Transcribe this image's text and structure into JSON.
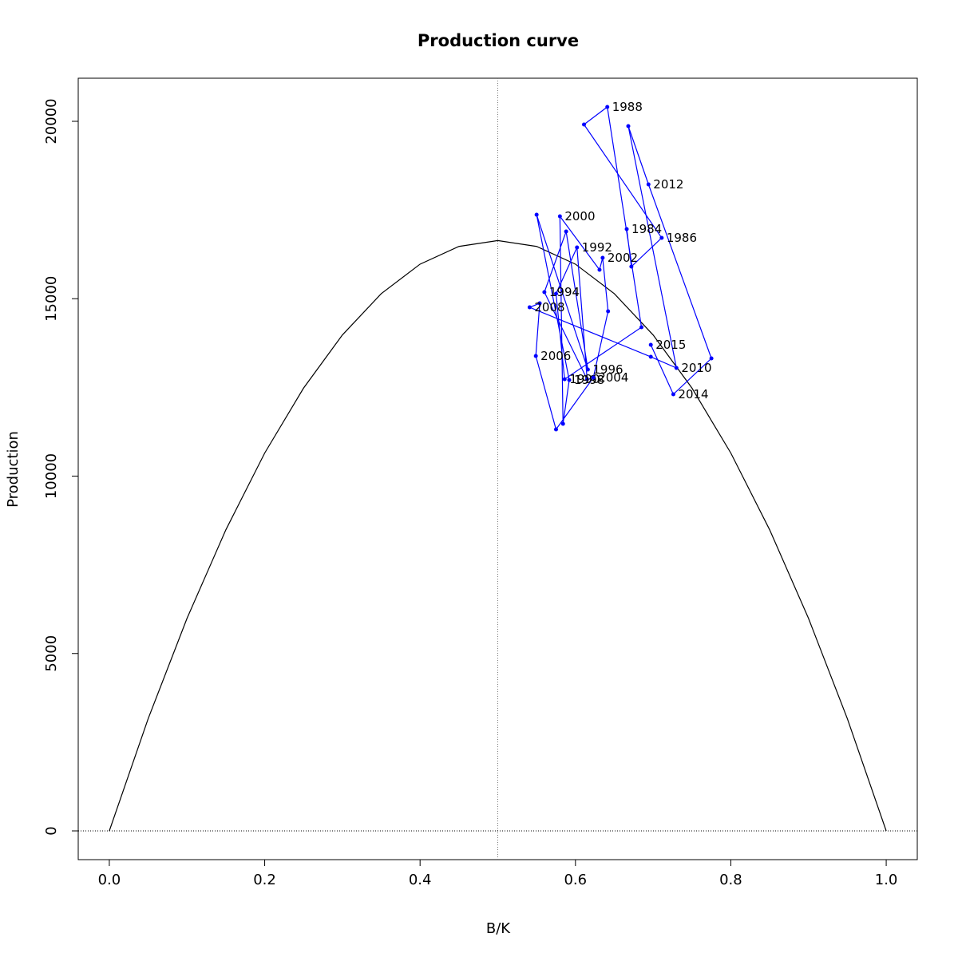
{
  "chart_data": {
    "type": "line",
    "title": "Production curve",
    "x_label": "B/K",
    "y_label": "Production",
    "xlim": [
      -0.04,
      1.04
    ],
    "ylim": [
      -810,
      21215
    ],
    "xticks": [
      {
        "value": 0,
        "label": "0.0"
      },
      0.2,
      0.4,
      0.6,
      0.8,
      {
        "value": 1,
        "label": "1.0"
      }
    ],
    "yticks": [
      0,
      5000,
      10000,
      15000,
      20000
    ],
    "vline": 0.5,
    "hline": 0,
    "curve": {
      "color": "#000000",
      "x": [
        0,
        0.05,
        0.1,
        0.15,
        0.2,
        0.25,
        0.3,
        0.35,
        0.4,
        0.45,
        0.5,
        0.55,
        0.6,
        0.65,
        0.7,
        0.75,
        0.8,
        0.85,
        0.9,
        0.95,
        1
      ],
      "values": [
        0,
        3162,
        5990,
        8486,
        10650,
        12480,
        13978,
        15142,
        15974,
        16474,
        16640,
        16474,
        15974,
        15142,
        13978,
        12480,
        10650,
        8486,
        5990,
        3162,
        0
      ]
    },
    "series": [
      {
        "color": "#0000ff",
        "x": [
          0.666,
          0.672,
          0.711,
          0.611,
          0.641,
          0.685,
          0.586,
          0.575,
          0.602,
          0.615,
          0.56,
          0.588,
          0.616,
          0.55,
          0.592,
          0.584,
          0.58,
          0.631,
          0.635,
          0.642,
          0.623,
          0.575,
          0.549,
          0.554,
          0.541,
          0.697,
          0.73,
          0.668,
          0.694,
          0.775,
          0.726,
          0.697
        ],
        "values": [
          16962,
          15905,
          16715,
          19910,
          20405,
          14196,
          12731,
          15141,
          16445,
          12731,
          15186,
          16895,
          13003,
          17367,
          12709,
          11474,
          17323,
          15816,
          16153,
          14646,
          12776,
          11317,
          13386,
          14871,
          14758,
          13363,
          13048,
          19865,
          18223,
          13318,
          12306,
          13701
        ],
        "labels": [
          "1984",
          null,
          "1986",
          null,
          "1988",
          null,
          "1990",
          null,
          "1992",
          null,
          "1994",
          null,
          "1996",
          null,
          "1998",
          null,
          "2000",
          null,
          "2002",
          null,
          "2004",
          null,
          "2006",
          null,
          "2008",
          null,
          "2010",
          null,
          "2012",
          null,
          "2014",
          "2015"
        ]
      }
    ]
  }
}
